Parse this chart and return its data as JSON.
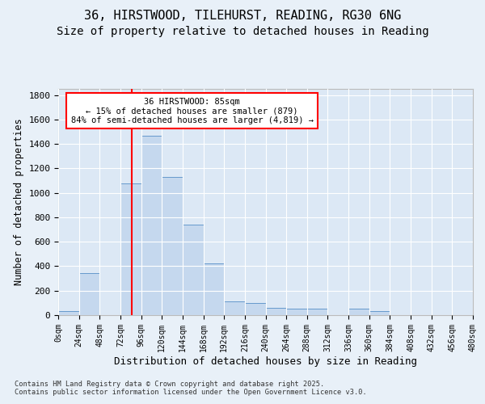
{
  "title_line1": "36, HIRSTWOOD, TILEHURST, READING, RG30 6NG",
  "title_line2": "Size of property relative to detached houses in Reading",
  "xlabel": "Distribution of detached houses by size in Reading",
  "ylabel": "Number of detached properties",
  "bin_edges": [
    0,
    24,
    48,
    72,
    96,
    120,
    144,
    168,
    192,
    216,
    240,
    264,
    288,
    312,
    336,
    360,
    384,
    408,
    432,
    456,
    480
  ],
  "bar_heights": [
    30,
    345,
    0,
    1080,
    1470,
    1130,
    740,
    420,
    110,
    100,
    60,
    55,
    50,
    0,
    50,
    30,
    0,
    0,
    0,
    0
  ],
  "bar_color": "#c5d8ee",
  "bar_edge_color": "#6699cc",
  "vline_x": 85,
  "vline_color": "red",
  "annotation_line1": "36 HIRSTWOOD: 85sqm",
  "annotation_line2": "← 15% of detached houses are smaller (879)",
  "annotation_line3": "84% of semi-detached houses are larger (4,819) →",
  "annotation_box_color": "red",
  "annotation_facecolor": "white",
  "annotation_fontsize": 7.5,
  "title_fontsize": 11,
  "subtitle_fontsize": 10,
  "xlabel_fontsize": 9,
  "ylabel_fontsize": 8.5,
  "tick_fontsize": 8,
  "xtick_fontsize": 7,
  "background_color": "#e8f0f8",
  "plot_background_color": "#dce8f5",
  "grid_color": "white",
  "ylim": [
    0,
    1850
  ],
  "yticks": [
    0,
    200,
    400,
    600,
    800,
    1000,
    1200,
    1400,
    1600,
    1800
  ],
  "footer_text": "Contains HM Land Registry data © Crown copyright and database right 2025.\nContains public sector information licensed under the Open Government Licence v3.0."
}
